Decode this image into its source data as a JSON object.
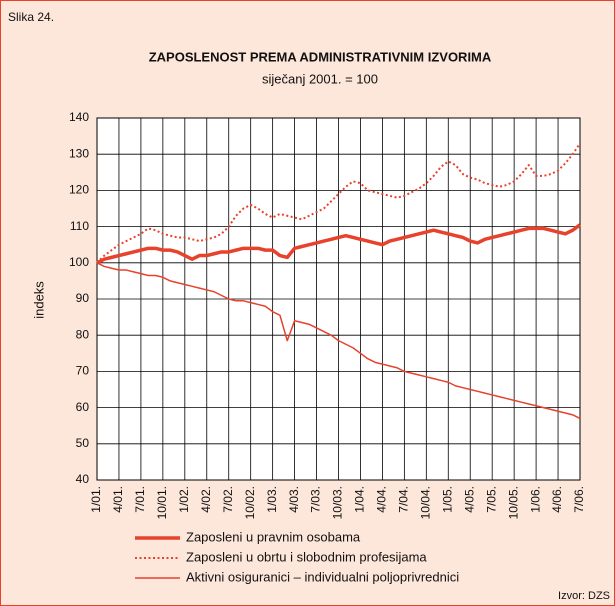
{
  "figure_label": "Slika 24.",
  "source": "Izvor: DZS",
  "chart_data": {
    "type": "line",
    "title": "ZAPOSLENOST PREMA ADMINISTRATIVNIM IZVORIMA",
    "subtitle": "siječanj 2001. = 100",
    "y_label": "indeks",
    "categories": [
      "1/01.",
      null,
      null,
      "4/01.",
      null,
      null,
      "7/01.",
      null,
      null,
      "10/01.",
      null,
      null,
      "1/02.",
      null,
      null,
      "4/02.",
      null,
      null,
      "7/02.",
      null,
      null,
      "10/02.",
      null,
      null,
      "1/03.",
      null,
      null,
      "4/03.",
      null,
      null,
      "7/03.",
      null,
      null,
      "10/03.",
      null,
      null,
      "1/04.",
      null,
      null,
      "4/04.",
      null,
      null,
      "7/04.",
      null,
      null,
      "10/04.",
      null,
      null,
      "1/05.",
      null,
      null,
      "4/05.",
      null,
      null,
      "7/05.",
      null,
      null,
      "10/05.",
      null,
      null,
      "1/06.",
      null,
      null,
      "4/06.",
      null,
      null,
      "7/06."
    ],
    "series": [
      {
        "name": "Zaposleni u pravnim osobama",
        "color": "#e8412c",
        "line_style": "solid",
        "line_width": 3.5,
        "values": [
          100,
          101,
          101.5,
          102,
          102.5,
          103,
          103.5,
          104,
          104,
          103.5,
          103.5,
          103,
          102,
          101,
          102,
          102,
          102.5,
          103,
          103,
          103.5,
          104,
          104,
          104,
          103.5,
          103.5,
          102,
          101.5,
          104,
          104.5,
          105,
          105.5,
          106,
          106.5,
          107,
          107.5,
          107,
          106.5,
          106,
          105.5,
          105,
          106,
          106.5,
          107,
          107.5,
          108,
          108.5,
          109,
          108.5,
          108,
          107.5,
          107,
          106,
          105.5,
          106.5,
          107,
          107.5,
          108,
          108.5,
          109,
          109.5,
          109.5,
          109.5,
          109,
          108.5,
          108,
          109,
          110.5
        ]
      },
      {
        "name": "Zaposleni u obrtu i slobodnim profesijama",
        "color": "#e8412c",
        "line_style": "dotted",
        "line_width": 2,
        "values": [
          100,
          102,
          103.5,
          105,
          106,
          107,
          108,
          109.5,
          109,
          108,
          107.5,
          107,
          107,
          106.5,
          106,
          106.5,
          107,
          108,
          110,
          113,
          115,
          116,
          115,
          113.5,
          112.5,
          113.5,
          113,
          112.5,
          112,
          113,
          114,
          115,
          117,
          119,
          121,
          122.5,
          122,
          120,
          119.5,
          119,
          118.5,
          118,
          118.5,
          119.5,
          120.5,
          122,
          124,
          126.5,
          128,
          127,
          124.5,
          123.5,
          123,
          122,
          121.5,
          121,
          121.5,
          122.5,
          124.5,
          127,
          124,
          124,
          124.5,
          125.5,
          127.5,
          130,
          133
        ]
      },
      {
        "name": "Aktivni osiguranici – individualni poljoprivrednici",
        "color": "#e8412c",
        "line_style": "solid",
        "line_width": 1.5,
        "values": [
          100,
          99,
          98.5,
          98,
          98,
          97.5,
          97,
          96.5,
          96.5,
          96,
          95,
          94.5,
          94,
          93.5,
          93,
          92.5,
          92,
          91,
          90,
          89.5,
          89.5,
          89,
          88.5,
          88,
          86.5,
          85.5,
          78.5,
          84,
          83.5,
          83,
          82,
          81,
          80,
          78.5,
          77.5,
          76.5,
          75,
          73.5,
          72.5,
          72,
          71.5,
          71,
          70,
          69.5,
          69,
          68.5,
          68,
          67.5,
          67,
          66,
          65.5,
          65,
          64.5,
          64,
          63.5,
          63,
          62.5,
          62,
          61.5,
          61,
          60.5,
          60,
          59.5,
          59,
          58.5,
          58,
          57
        ]
      }
    ],
    "ylim": [
      40,
      140
    ],
    "yticks": [
      40,
      50,
      60,
      70,
      80,
      90,
      100,
      110,
      120,
      130,
      140
    ],
    "grid": true
  }
}
